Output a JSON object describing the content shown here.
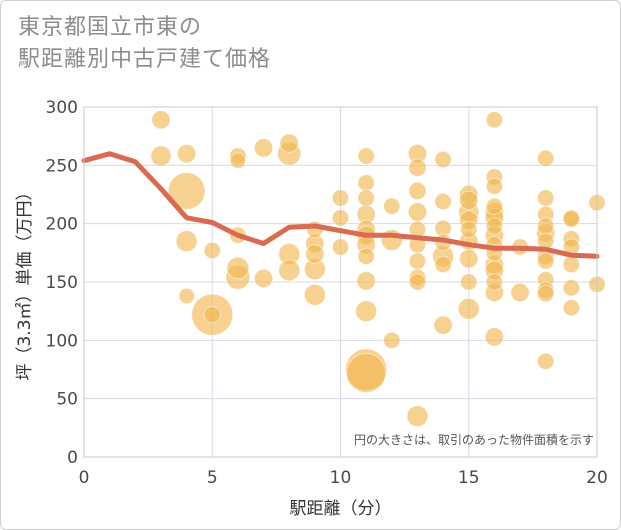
{
  "chart_data": {
    "type": "scatter",
    "title_lines": [
      "東京都国立市東の",
      "駅距離別中古戸建て価格"
    ],
    "xlabel": "駅距離（分）",
    "ylabel": "坪（3.3㎡）単価（万円）",
    "xlim": [
      0,
      20
    ],
    "ylim": [
      0,
      300
    ],
    "xticks": [
      0,
      5,
      10,
      15,
      20
    ],
    "yticks": [
      0,
      50,
      100,
      150,
      200,
      250,
      300
    ],
    "grid": true,
    "note": "円の大きさは、取引のあった物件面積を示す",
    "colors": {
      "bubble": "#f0b44c",
      "line": "#d96b52",
      "grid": "#d5dbe6",
      "plot_border": "#c4cbd6"
    },
    "series": [
      {
        "type": "bubble",
        "points": [
          [
            3,
            289,
            1
          ],
          [
            3,
            258,
            1.2
          ],
          [
            4,
            260,
            1
          ],
          [
            4,
            228,
            4
          ],
          [
            4,
            185,
            1.3
          ],
          [
            4,
            138,
            0.7
          ],
          [
            5,
            177,
            0.8
          ],
          [
            5,
            122,
            5
          ],
          [
            5,
            122,
            0.8
          ],
          [
            6,
            258,
            0.8
          ],
          [
            6,
            254,
            0.7
          ],
          [
            6,
            190,
            0.8
          ],
          [
            6,
            162,
            1.4
          ],
          [
            6,
            154,
            1.7
          ],
          [
            7,
            265,
            1
          ],
          [
            7,
            153,
            1
          ],
          [
            8,
            269,
            1
          ],
          [
            8,
            260,
            1.6
          ],
          [
            8,
            174,
            1.3
          ],
          [
            8,
            160,
            1.3
          ],
          [
            9,
            195,
            0.8
          ],
          [
            9,
            183,
            1
          ],
          [
            9,
            174,
            1
          ],
          [
            9,
            161,
            1.3
          ],
          [
            9,
            139,
            1.3
          ],
          [
            10,
            222,
            0.8
          ],
          [
            10,
            205,
            0.8
          ],
          [
            10,
            180,
            0.8
          ],
          [
            11,
            258,
            0.8
          ],
          [
            11,
            235,
            0.8
          ],
          [
            11,
            222,
            0.8
          ],
          [
            11,
            208,
            1
          ],
          [
            11,
            195,
            1
          ],
          [
            11,
            190,
            1
          ],
          [
            11,
            182,
            1
          ],
          [
            11,
            172,
            0.8
          ],
          [
            11,
            151,
            1
          ],
          [
            11,
            125,
            1.3
          ],
          [
            11,
            75,
            5
          ],
          [
            11,
            72,
            4.5
          ],
          [
            12,
            215,
            0.8
          ],
          [
            12,
            186,
            1.3
          ],
          [
            12,
            100,
            0.8
          ],
          [
            13,
            260,
            1
          ],
          [
            13,
            248,
            0.9
          ],
          [
            13,
            228,
            0.9
          ],
          [
            13,
            210,
            1
          ],
          [
            13,
            195,
            0.8
          ],
          [
            13,
            182,
            0.8
          ],
          [
            13,
            168,
            0.8
          ],
          [
            13,
            154,
            0.8
          ],
          [
            13,
            150,
            0.8
          ],
          [
            13,
            35,
            1.3
          ],
          [
            14,
            255,
            0.8
          ],
          [
            14,
            219,
            0.8
          ],
          [
            14,
            196,
            0.8
          ],
          [
            14,
            184,
            0.8
          ],
          [
            14,
            172,
            1.3
          ],
          [
            14,
            165,
            0.8
          ],
          [
            14,
            113,
            1
          ],
          [
            15,
            225,
            1
          ],
          [
            15,
            220,
            1
          ],
          [
            15,
            210,
            1.2
          ],
          [
            15,
            203,
            1
          ],
          [
            15,
            195,
            0.8
          ],
          [
            15,
            185,
            1
          ],
          [
            15,
            170,
            1
          ],
          [
            15,
            150,
            0.8
          ],
          [
            15,
            127,
            1.3
          ],
          [
            16,
            289,
            0.8
          ],
          [
            16,
            240,
            0.8
          ],
          [
            16,
            232,
            0.8
          ],
          [
            16,
            215,
            0.8
          ],
          [
            16,
            210,
            1
          ],
          [
            16,
            205,
            1
          ],
          [
            16,
            198,
            0.8
          ],
          [
            16,
            190,
            1
          ],
          [
            16,
            182,
            0.8
          ],
          [
            16,
            175,
            0.8
          ],
          [
            16,
            165,
            1
          ],
          [
            16,
            160,
            1
          ],
          [
            16,
            150,
            0.8
          ],
          [
            16,
            141,
            1
          ],
          [
            16,
            103,
            1
          ],
          [
            17,
            180,
            0.8
          ],
          [
            17,
            141,
            1
          ],
          [
            18,
            256,
            0.8
          ],
          [
            18,
            222,
            0.8
          ],
          [
            18,
            208,
            0.8
          ],
          [
            18,
            198,
            0.8
          ],
          [
            18,
            192,
            1
          ],
          [
            18,
            185,
            0.8
          ],
          [
            18,
            172,
            0.8
          ],
          [
            18,
            168,
            0.8
          ],
          [
            18,
            152,
            0.8
          ],
          [
            18,
            143,
            0.8
          ],
          [
            18,
            140,
            0.8
          ],
          [
            18,
            82,
            0.8
          ],
          [
            19,
            205,
            0.8
          ],
          [
            19,
            204,
            0.8
          ],
          [
            19,
            187,
            0.8
          ],
          [
            19,
            180,
            0.8
          ],
          [
            19,
            165,
            0.8
          ],
          [
            19,
            145,
            0.8
          ],
          [
            19,
            128,
            0.8
          ],
          [
            20,
            218,
            0.8
          ],
          [
            20,
            148,
            0.8
          ]
        ]
      },
      {
        "type": "line",
        "x": [
          0,
          1,
          2,
          3,
          4,
          5,
          6,
          7,
          8,
          9,
          10,
          11,
          12,
          13,
          14,
          15,
          16,
          17,
          18,
          19,
          20
        ],
        "y": [
          254,
          260,
          253,
          230,
          205,
          201,
          190,
          183,
          197,
          198,
          194,
          190,
          190,
          188,
          186,
          182,
          179,
          179,
          178,
          173,
          172
        ]
      }
    ]
  }
}
